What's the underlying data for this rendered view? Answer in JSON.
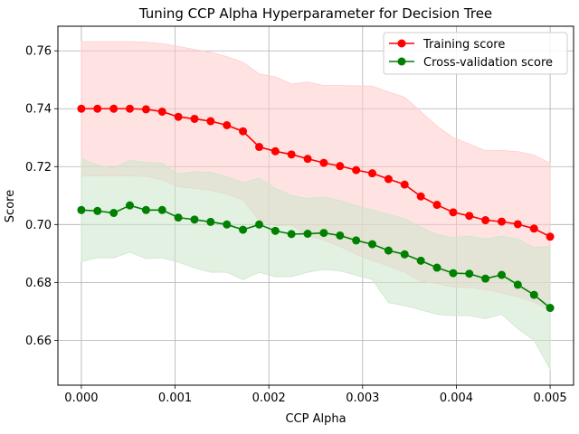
{
  "chart_data": {
    "type": "line",
    "title": "Tuning CCP Alpha Hyperparameter for Decision Tree",
    "xlabel": "CCP Alpha",
    "ylabel": "Score",
    "xlim": [
      -0.00025,
      0.00525
    ],
    "ylim": [
      0.6445,
      0.7685
    ],
    "xticks": [
      0.0,
      0.001,
      0.002,
      0.003,
      0.004,
      0.005
    ],
    "xtick_labels": [
      "0.000",
      "0.001",
      "0.002",
      "0.003",
      "0.004",
      "0.005"
    ],
    "yticks": [
      0.66,
      0.68,
      0.7,
      0.72,
      0.74,
      0.76
    ],
    "ytick_labels": [
      "0.66",
      "0.68",
      "0.70",
      "0.72",
      "0.74",
      "0.76"
    ],
    "grid": true,
    "legend_position": "top-right",
    "x": [
      0.0,
      0.000172,
      0.000345,
      0.000517,
      0.00069,
      0.000862,
      0.001034,
      0.001207,
      0.001379,
      0.001552,
      0.001724,
      0.001897,
      0.002069,
      0.002241,
      0.002414,
      0.002586,
      0.002759,
      0.002931,
      0.003103,
      0.003276,
      0.003448,
      0.003621,
      0.003793,
      0.003966,
      0.004138,
      0.00431,
      0.004483,
      0.004655,
      0.004828,
      0.005
    ],
    "series": [
      {
        "name": "Training score",
        "color": "#ff0000",
        "band_color": "#ffcccc",
        "values": [
          0.74,
          0.74,
          0.74,
          0.74,
          0.7398,
          0.739,
          0.7372,
          0.7365,
          0.7357,
          0.7343,
          0.7322,
          0.7268,
          0.7253,
          0.7242,
          0.7227,
          0.7213,
          0.7202,
          0.7188,
          0.7177,
          0.7157,
          0.7138,
          0.7097,
          0.7068,
          0.7042,
          0.703,
          0.7015,
          0.701,
          0.7001,
          0.6986,
          0.6958
        ],
        "upper": [
          0.7632,
          0.7632,
          0.7632,
          0.7632,
          0.763,
          0.7625,
          0.7615,
          0.7605,
          0.7595,
          0.758,
          0.756,
          0.752,
          0.751,
          0.7485,
          0.7492,
          0.748,
          0.748,
          0.7479,
          0.7478,
          0.7458,
          0.744,
          0.739,
          0.734,
          0.73,
          0.7278,
          0.7255,
          0.7256,
          0.7252,
          0.724,
          0.7212
        ],
        "lower": [
          0.7168,
          0.7168,
          0.7168,
          0.7168,
          0.7166,
          0.7155,
          0.713,
          0.7125,
          0.7118,
          0.7105,
          0.7084,
          0.7015,
          0.6996,
          0.6998,
          0.6962,
          0.6946,
          0.6924,
          0.6897,
          0.6876,
          0.6856,
          0.6836,
          0.6804,
          0.6796,
          0.6784,
          0.6782,
          0.6775,
          0.6764,
          0.675,
          0.6732,
          0.6704
        ]
      },
      {
        "name": "Cross-validation score",
        "color": "#008000",
        "band_color": "#cce6cc",
        "values": [
          0.705,
          0.7047,
          0.704,
          0.7066,
          0.705,
          0.705,
          0.7024,
          0.7017,
          0.7009,
          0.7,
          0.6982,
          0.7,
          0.6978,
          0.6967,
          0.6968,
          0.6971,
          0.6962,
          0.6945,
          0.6932,
          0.691,
          0.6897,
          0.6875,
          0.6851,
          0.6832,
          0.683,
          0.6813,
          0.6826,
          0.6792,
          0.6757,
          0.6712
        ],
        "upper": [
          0.7228,
          0.7205,
          0.7195,
          0.7222,
          0.7215,
          0.7212,
          0.7175,
          0.7182,
          0.718,
          0.7165,
          0.7145,
          0.716,
          0.7125,
          0.71,
          0.709,
          0.7095,
          0.7083,
          0.7065,
          0.705,
          0.7035,
          0.702,
          0.699,
          0.6965,
          0.6955,
          0.696,
          0.695,
          0.696,
          0.695,
          0.692,
          0.6925
        ],
        "lower": [
          0.6872,
          0.6885,
          0.6885,
          0.6905,
          0.6882,
          0.6885,
          0.687,
          0.685,
          0.6835,
          0.6835,
          0.681,
          0.6835,
          0.682,
          0.682,
          0.6835,
          0.6845,
          0.684,
          0.6825,
          0.681,
          0.673,
          0.672,
          0.6705,
          0.669,
          0.6685,
          0.6685,
          0.6675,
          0.669,
          0.664,
          0.66,
          0.65
        ]
      }
    ]
  }
}
